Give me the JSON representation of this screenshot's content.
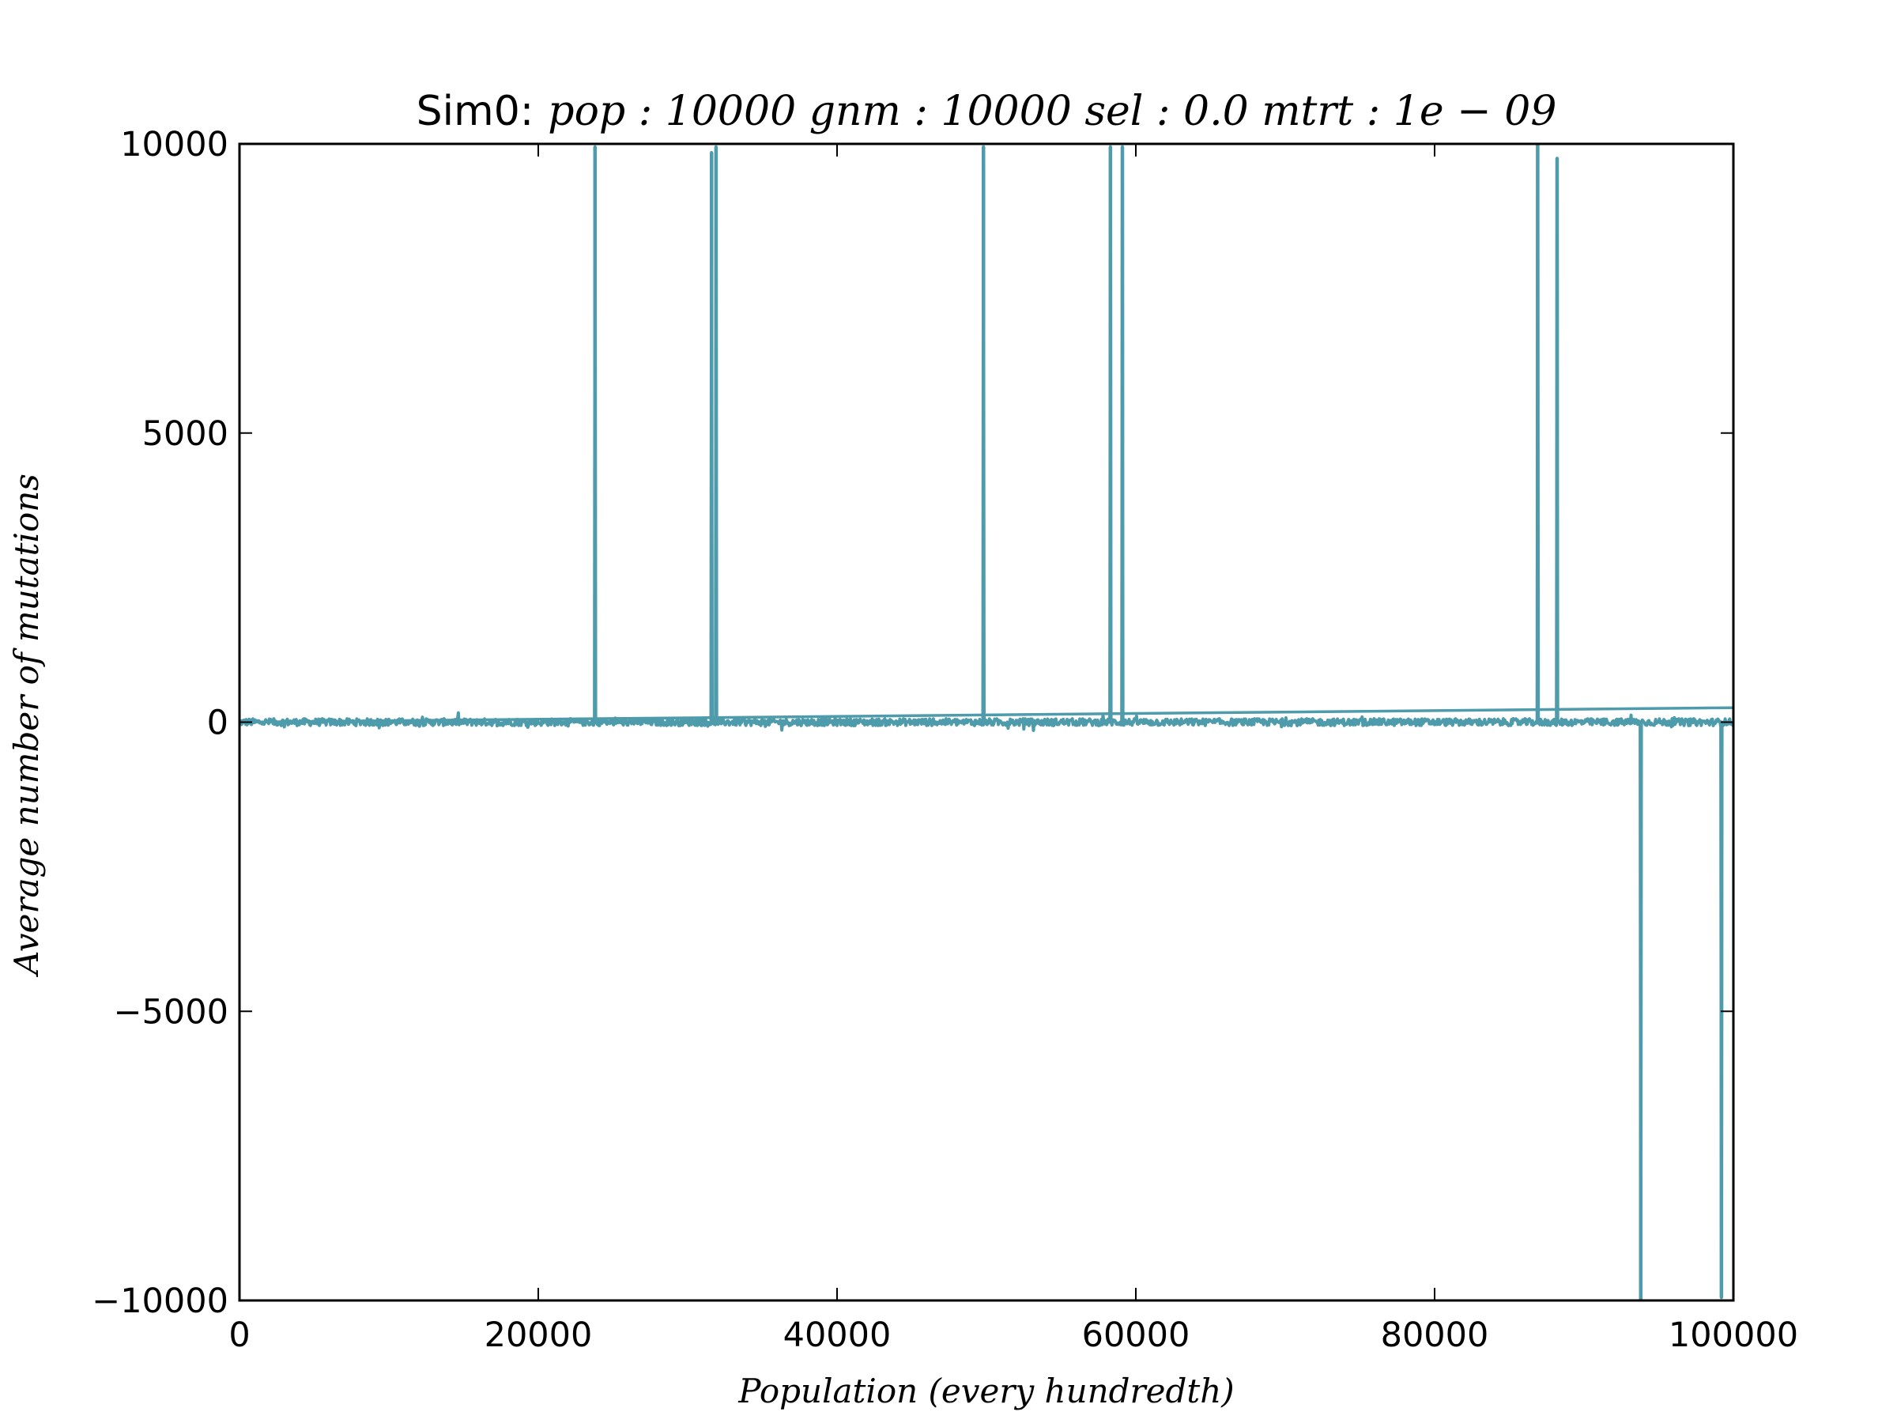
{
  "chart_data": {
    "type": "line",
    "title": {
      "prefix": "Sim0:",
      "math": "pop : 10000  gnm : 10000  sel : 0.0  mtrt : 1e − 09"
    },
    "xlabel": "Population (every hundredth)",
    "ylabel": "Average number of mutations",
    "xlim": [
      0,
      100000
    ],
    "ylim": [
      -10000,
      10000
    ],
    "xticks": [
      {
        "value": 0,
        "label": "0"
      },
      {
        "value": 20000,
        "label": "20000"
      },
      {
        "value": 40000,
        "label": "40000"
      },
      {
        "value": 60000,
        "label": "60000"
      },
      {
        "value": 80000,
        "label": "80000"
      },
      {
        "value": 100000,
        "label": "100000"
      }
    ],
    "yticks": [
      {
        "value": 10000,
        "label": "10000"
      },
      {
        "value": 5000,
        "label": "5000"
      },
      {
        "value": 0,
        "label": "0"
      },
      {
        "value": -5000,
        "label": "−5000"
      },
      {
        "value": -10000,
        "label": "−10000"
      }
    ],
    "grid": false,
    "series": [
      {
        "color": "#4e9bab",
        "baseline": 0,
        "noise_amplitude": 60,
        "spikes_up": [
          {
            "x": 23800,
            "y": 9950
          },
          {
            "x": 31600,
            "y": 9850
          },
          {
            "x": 31900,
            "y": 9950
          },
          {
            "x": 49800,
            "y": 9950
          },
          {
            "x": 58300,
            "y": 9950
          },
          {
            "x": 59100,
            "y": 9950
          },
          {
            "x": 86900,
            "y": 10000
          },
          {
            "x": 88200,
            "y": 9750
          }
        ],
        "spikes_down": [
          {
            "x": 93800,
            "y": -10000
          },
          {
            "x": 99200,
            "y": -9950
          }
        ],
        "trend_line": [
          {
            "x": 0,
            "y": 0
          },
          {
            "x": 100000,
            "y": 250
          }
        ]
      }
    ]
  }
}
